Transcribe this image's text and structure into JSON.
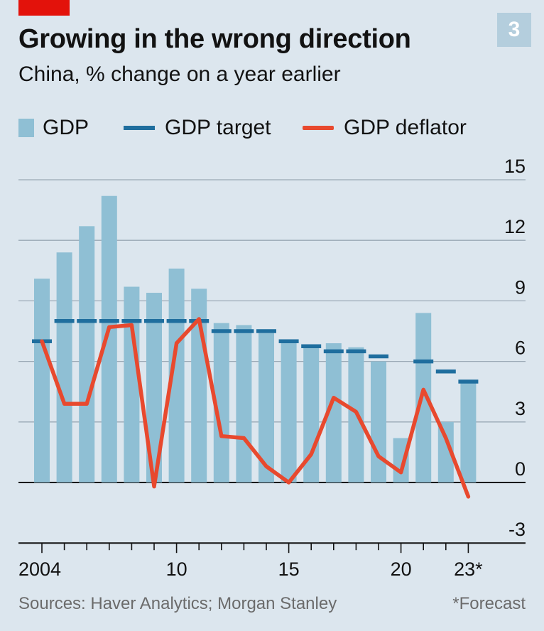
{
  "header": {
    "chart_number": "3",
    "title": "Growing in the wrong direction",
    "subtitle": "China, % change on a year earlier"
  },
  "legend": {
    "gdp": "GDP",
    "target": "GDP target",
    "deflator": "GDP deflator"
  },
  "footer": {
    "source": "Sources: Haver Analytics; Morgan Stanley",
    "footnote": "*Forecast"
  },
  "colors": {
    "background": "#dce6ee",
    "bar": "#8fbfd4",
    "target": "#1f6e9e",
    "deflator": "#e8492e",
    "accent": "#e3120b"
  },
  "chart_data": {
    "type": "bar",
    "x": [
      2004,
      2005,
      2006,
      2007,
      2008,
      2009,
      2010,
      2011,
      2012,
      2013,
      2014,
      2015,
      2016,
      2017,
      2018,
      2019,
      2020,
      2021,
      2022,
      2023
    ],
    "x_tick_labels": [
      {
        "x": 2004,
        "label": "2004"
      },
      {
        "x": 2010,
        "label": "10"
      },
      {
        "x": 2015,
        "label": "15"
      },
      {
        "x": 2020,
        "label": "20"
      },
      {
        "x": 2023,
        "label": "23*"
      }
    ],
    "y_ticks": [
      15,
      12,
      9,
      6,
      3,
      0,
      -3
    ],
    "ylim": [
      -3,
      15
    ],
    "y_axis_side": "right",
    "grid": true,
    "legend_position": "top",
    "series": [
      {
        "name": "GDP",
        "kind": "bar",
        "values": [
          10.1,
          11.4,
          12.7,
          14.2,
          9.7,
          9.4,
          10.6,
          9.6,
          7.9,
          7.8,
          7.4,
          7.0,
          6.8,
          6.9,
          6.7,
          6.0,
          2.2,
          8.4,
          3.0,
          5.0
        ]
      },
      {
        "name": "GDP target",
        "kind": "dash",
        "values": [
          7.0,
          8.0,
          8.0,
          8.0,
          8.0,
          8.0,
          8.0,
          8.0,
          7.5,
          7.5,
          7.5,
          7.0,
          6.75,
          6.5,
          6.5,
          6.25,
          null,
          6.0,
          5.5,
          5.0
        ]
      },
      {
        "name": "GDP deflator",
        "kind": "line",
        "values": [
          7.0,
          3.9,
          3.9,
          7.7,
          7.8,
          -0.2,
          6.9,
          8.1,
          2.3,
          2.2,
          0.8,
          0.0,
          1.4,
          4.2,
          3.5,
          1.3,
          0.5,
          4.6,
          2.2,
          -0.7
        ]
      }
    ]
  }
}
